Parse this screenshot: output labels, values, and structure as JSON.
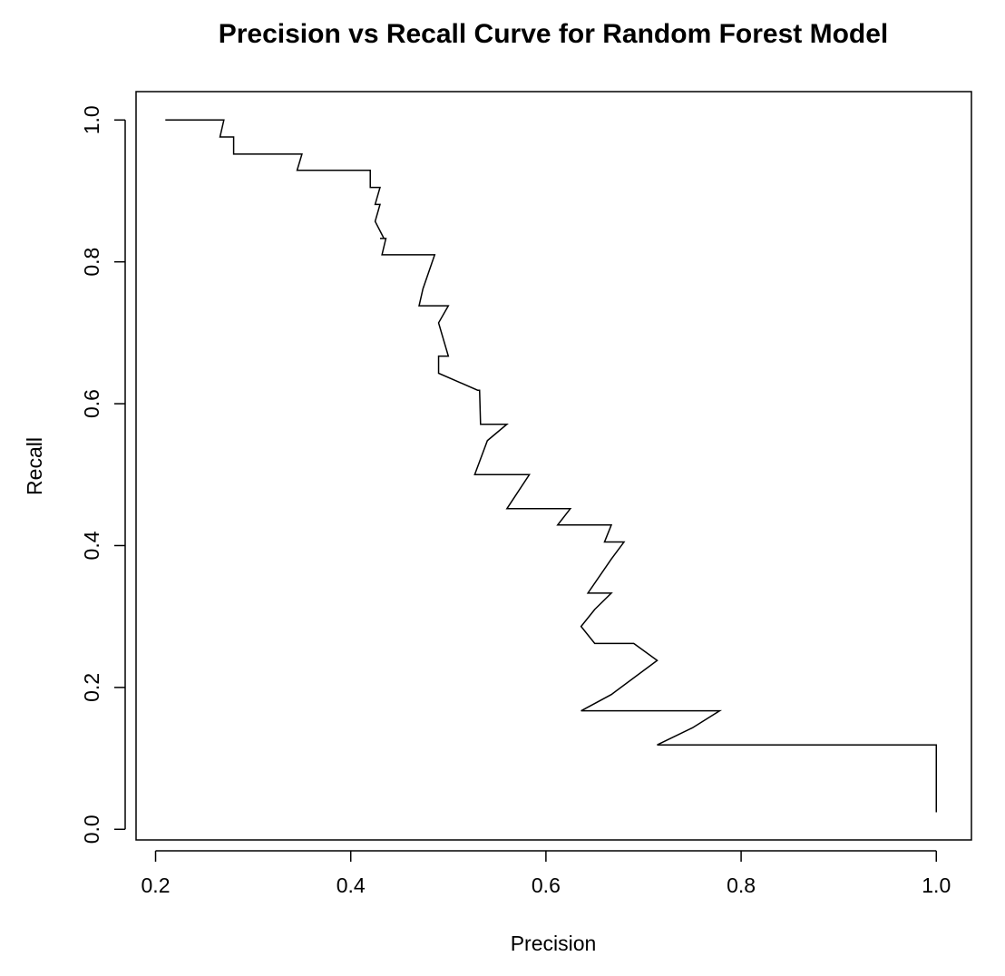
{
  "chart_data": {
    "type": "line",
    "title": "Precision vs Recall Curve for Random Forest Model",
    "xlabel": "Precision",
    "ylabel": "Recall",
    "xlim": [
      0.18,
      1.036
    ],
    "ylim": [
      -0.015,
      1.04
    ],
    "xticks": [
      0.2,
      0.4,
      0.6,
      0.8,
      1.0
    ],
    "xtick_labels": [
      "0.2",
      "0.4",
      "0.6",
      "0.8",
      "1.0"
    ],
    "yticks": [
      0.0,
      0.2,
      0.4,
      0.6,
      0.8,
      1.0
    ],
    "ytick_labels": [
      "0.0",
      "0.2",
      "0.4",
      "0.6",
      "0.8",
      "1.0"
    ],
    "grid": false,
    "line_color": "#000000",
    "series": [
      {
        "x": [
          0.21,
          0.27,
          0.266,
          0.28,
          0.28,
          0.333,
          0.35,
          0.345,
          0.42,
          0.42,
          0.43,
          0.425,
          0.43,
          0.425,
          0.434,
          0.43,
          0.436,
          0.432,
          0.486,
          0.48,
          0.474,
          0.47,
          0.5,
          0.49,
          0.5,
          0.49,
          0.49,
          0.53,
          0.532,
          0.533,
          0.56,
          0.54,
          0.527,
          0.583,
          0.56,
          0.625,
          0.612,
          0.667,
          0.66,
          0.68,
          0.667,
          0.643,
          0.667,
          0.65,
          0.636,
          0.65,
          0.69,
          0.714,
          0.667,
          0.636,
          0.778,
          0.75,
          0.714,
          1.0,
          1.0
        ],
        "y": [
          1.0,
          1.0,
          0.976,
          0.976,
          0.952,
          0.952,
          0.952,
          0.929,
          0.929,
          0.905,
          0.905,
          0.881,
          0.881,
          0.857,
          0.833,
          0.833,
          0.833,
          0.81,
          0.81,
          0.786,
          0.762,
          0.738,
          0.738,
          0.714,
          0.667,
          0.667,
          0.643,
          0.619,
          0.619,
          0.571,
          0.571,
          0.548,
          0.5,
          0.5,
          0.452,
          0.452,
          0.429,
          0.429,
          0.405,
          0.405,
          0.381,
          0.333,
          0.333,
          0.31,
          0.286,
          0.262,
          0.262,
          0.238,
          0.19,
          0.167,
          0.167,
          0.143,
          0.119,
          0.119,
          0.024
        ]
      }
    ]
  }
}
